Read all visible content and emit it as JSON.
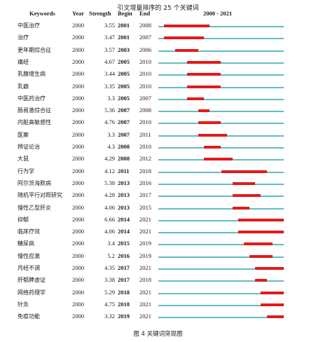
{
  "title": "引文增量排序的 25 个关键词",
  "header": {
    "keywords": "Keywords",
    "year": "Year",
    "strength": "Strength",
    "begin": "Begin",
    "end": "End",
    "range": "2000 - 2021"
  },
  "timeline": {
    "start": 2000,
    "end": 2021
  },
  "colors": {
    "bar_base": "#63bcc0",
    "bar_burst": "#e21a1a"
  },
  "rows": [
    {
      "keyword": "中医治疗",
      "year": "2000",
      "strength": "3.55",
      "begin": "2001",
      "end": "2008"
    },
    {
      "keyword": "治疗",
      "year": "2000",
      "strength": "3.47",
      "begin": "2001",
      "end": "2007"
    },
    {
      "keyword": "更年期综合征",
      "year": "2000",
      "strength": "3.57",
      "begin": "2003",
      "end": "2006"
    },
    {
      "keyword": "痛经",
      "year": "2000",
      "strength": "4.67",
      "begin": "2005",
      "end": "2010"
    },
    {
      "keyword": "乳腺增生病",
      "year": "2000",
      "strength": "3.44",
      "begin": "2005",
      "end": "2010"
    },
    {
      "keyword": "乳癖",
      "year": "2000",
      "strength": "3.35",
      "begin": "2005",
      "end": "2010"
    },
    {
      "keyword": "中医药治疗",
      "year": "2000",
      "strength": "3.3",
      "begin": "2005",
      "end": "2007"
    },
    {
      "keyword": "肠易激综合征",
      "year": "2000",
      "strength": "5.36",
      "begin": "2007",
      "end": "2008"
    },
    {
      "keyword": "内脏高敏感性",
      "year": "2000",
      "strength": "4.76",
      "begin": "2007",
      "end": "2010"
    },
    {
      "keyword": "医案",
      "year": "2000",
      "strength": "3.3",
      "begin": "2007",
      "end": "2011"
    },
    {
      "keyword": "辨证论治",
      "year": "2000",
      "strength": "4.3",
      "begin": "2008",
      "end": "2010"
    },
    {
      "keyword": "大鼠",
      "year": "2000",
      "strength": "4.29",
      "begin": "2008",
      "end": "2012"
    },
    {
      "keyword": "行为学",
      "year": "2000",
      "strength": "4.12",
      "begin": "2011",
      "end": "2018"
    },
    {
      "keyword": "阿尔茨海默病",
      "year": "2000",
      "strength": "5.38",
      "begin": "2013",
      "end": "2016"
    },
    {
      "keyword": "随机平行对照研究",
      "year": "2000",
      "strength": "4.28",
      "begin": "2013",
      "end": "2017"
    },
    {
      "keyword": "慢性乙型肝炎",
      "year": "2000",
      "strength": "4.06",
      "begin": "2013",
      "end": "2015"
    },
    {
      "keyword": "抑郁",
      "year": "2000",
      "strength": "6.66",
      "begin": "2014",
      "end": "2021"
    },
    {
      "keyword": "临床疗效",
      "year": "2000",
      "strength": "4.06",
      "begin": "2014",
      "end": "2021"
    },
    {
      "keyword": "糖尿病",
      "year": "2000",
      "strength": "3.4",
      "begin": "2015",
      "end": "2019"
    },
    {
      "keyword": "慢性应激",
      "year": "2000",
      "strength": "5.2",
      "begin": "2016",
      "end": "2019"
    },
    {
      "keyword": "月经不调",
      "year": "2000",
      "strength": "4.35",
      "begin": "2017",
      "end": "2021"
    },
    {
      "keyword": "肝郁脾虚证",
      "year": "2000",
      "strength": "3.38",
      "begin": "2017",
      "end": "2018"
    },
    {
      "keyword": "网络药理学",
      "year": "2000",
      "strength": "5.29",
      "begin": "2018",
      "end": "2021"
    },
    {
      "keyword": "针灸",
      "year": "2000",
      "strength": "4.75",
      "begin": "2018",
      "end": "2021"
    },
    {
      "keyword": "免疫功能",
      "year": "2000",
      "strength": "3.32",
      "begin": "2019",
      "end": "2021"
    }
  ],
  "caption": "图 4   关键词突现图"
}
